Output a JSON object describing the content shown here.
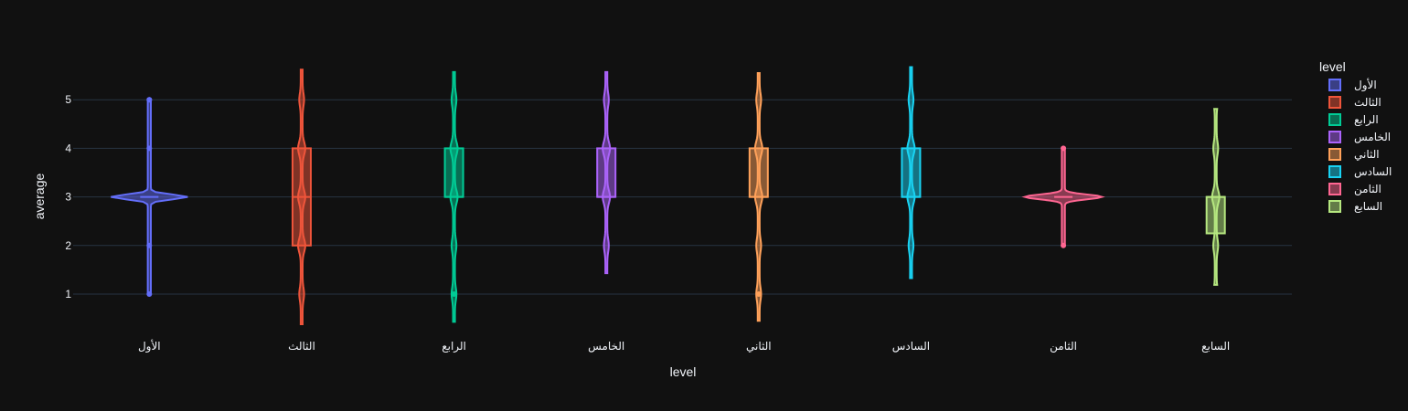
{
  "chart_data": {
    "type": "violin",
    "xlabel": "level",
    "ylabel": "average",
    "yticks": [
      1,
      2,
      3,
      4,
      5
    ],
    "ylim": [
      0.2,
      5.9
    ],
    "grid": true,
    "legend": {
      "title": "level",
      "placement": "right"
    },
    "categories": [
      "الأول",
      "الثالث",
      "الرابع",
      "الخامس",
      "الثاني",
      "السادس",
      "الثامن",
      "السابع"
    ],
    "series": [
      {
        "name": "الأول",
        "color": "#636efa",
        "min": 1,
        "max": 5,
        "q1": 3,
        "median": 3,
        "q3": 3,
        "kde_min": 1,
        "kde_max": 5,
        "points": [
          1,
          2,
          4,
          5,
          5
        ]
      },
      {
        "name": "الثالث",
        "color": "#ef553b",
        "min": 0.38,
        "max": 5.62,
        "q1": 2,
        "median": 3,
        "q3": 4,
        "kde_min": 0.38,
        "kde_max": 5.62,
        "points": []
      },
      {
        "name": "الرابع",
        "color": "#00cc96",
        "min": 0.43,
        "max": 5.57,
        "q1": 3,
        "median": 3,
        "q3": 4,
        "kde_min": 0.43,
        "kde_max": 5.57,
        "points": [
          1
        ]
      },
      {
        "name": "الخامس",
        "color": "#ab63fa",
        "min": 1.43,
        "max": 5.57,
        "q1": 3,
        "median": 3,
        "q3": 4,
        "kde_min": 1.43,
        "kde_max": 5.57,
        "points": []
      },
      {
        "name": "الثاني",
        "color": "#ffa15a",
        "min": 0.45,
        "max": 5.55,
        "q1": 3,
        "median": 3,
        "q3": 4,
        "kde_min": 0.45,
        "kde_max": 5.55,
        "points": [
          1
        ]
      },
      {
        "name": "السادس",
        "color": "#19d3f3",
        "min": 1.33,
        "max": 5.67,
        "q1": 3,
        "median": 3,
        "q3": 4,
        "kde_min": 1.33,
        "kde_max": 5.67,
        "points": []
      },
      {
        "name": "الثامن",
        "color": "#ff6692",
        "min": 2,
        "max": 4,
        "q1": 3,
        "median": 3,
        "q3": 3,
        "kde_min": 2,
        "kde_max": 4,
        "points": [
          2,
          4
        ]
      },
      {
        "name": "السابع",
        "color": "#b6e880",
        "min": 1.19,
        "max": 4.81,
        "q1": 2.25,
        "median": 3,
        "q3": 3,
        "kde_min": 1.19,
        "kde_max": 4.81,
        "points": []
      }
    ]
  }
}
